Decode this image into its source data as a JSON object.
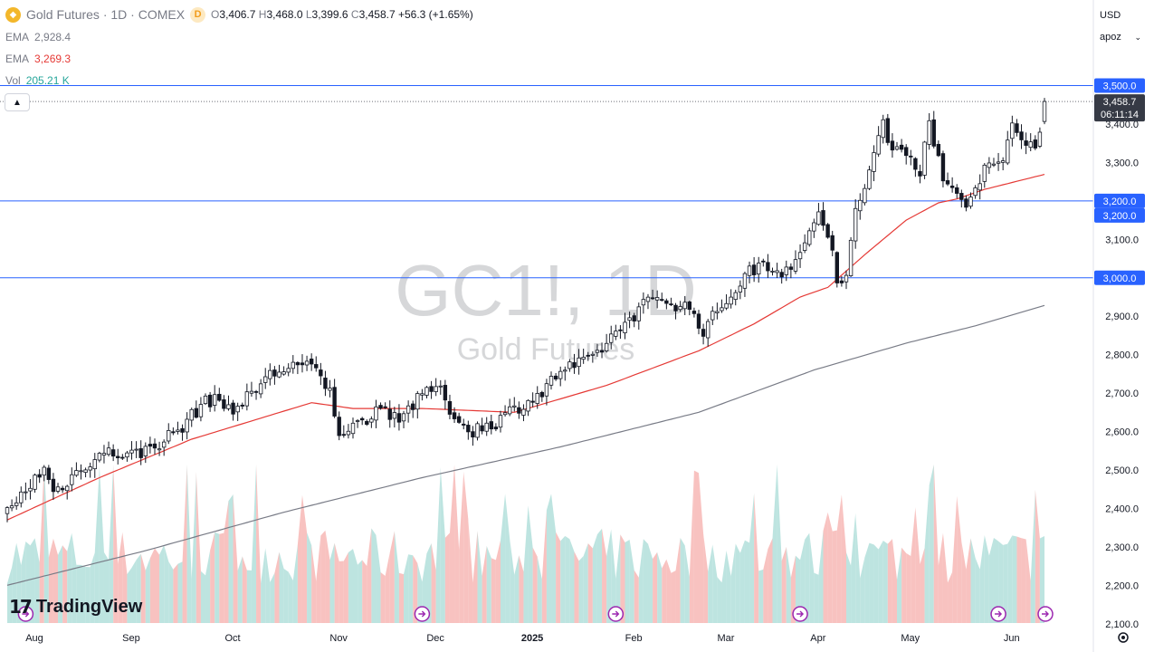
{
  "header": {
    "symbol_title": "Gold Futures · 1D · COMEX",
    "interval_badge": "D",
    "ohlc": {
      "open_label": "O",
      "open": "3,406.7",
      "high_label": "H",
      "high": "3,468.0",
      "low_label": "L",
      "low": "3,399.6",
      "close_label": "C",
      "close": "3,458.7",
      "change": "+56.3 (+1.65%)"
    },
    "collapse_icon": "chevron-up-icon"
  },
  "indicators": [
    {
      "name": "EMA",
      "value": "2,928.4",
      "color": "#787b86"
    },
    {
      "name": "EMA",
      "value": "3,269.3",
      "color": "#e53935"
    },
    {
      "name": "Vol",
      "value": "205.21 K",
      "color": "#26a69a"
    }
  ],
  "controls": {
    "currency": "USD",
    "scale_mode": "apoz"
  },
  "watermark": {
    "symbol": "GC1!, 1D",
    "name": "Gold Futures"
  },
  "branding": {
    "name": "TradingView",
    "logo_icon": "tradingview-logo-icon"
  },
  "colors": {
    "up": "#26a69a",
    "down": "#ef5350",
    "level_line": "#2962ff",
    "ema_fast": "#e53935",
    "ema_slow": "#787b86",
    "vol_up": "#b2dfdb",
    "vol_down": "#f7b7b5"
  },
  "chart_data": {
    "type": "candlestick",
    "title": "Gold Futures · 1D · COMEX",
    "y_axis": {
      "ticks": [
        2100,
        2200,
        2300,
        2400,
        2500,
        2600,
        2700,
        2800,
        2900,
        3000,
        3100,
        3200,
        3300,
        3400
      ],
      "tick_labels": [
        "2,100.0",
        "2,200.0",
        "2,300.0",
        "2,400.0",
        "2,500.0",
        "2,600.0",
        "2,700.0",
        "2,800.0",
        "2,900.0",
        "3,000.0",
        "3,100.0",
        "3,200.0",
        "3,300.0",
        "3,400.0"
      ],
      "range": [
        2080,
        3560
      ],
      "price_tags": [
        {
          "label": "3,500.0",
          "value": 3500
        },
        {
          "label": "3,458.7",
          "value": 3458.7,
          "sublabel": "06:11:14"
        },
        {
          "label": "3,200.0",
          "value": 3200
        },
        {
          "label": "3,200.0",
          "value": 3200,
          "offset": 1
        },
        {
          "label": "3,000.0",
          "value": 3000
        }
      ]
    },
    "x_axis": {
      "labels": [
        "Aug",
        "Sep",
        "Oct",
        "Nov",
        "Dec",
        "2025",
        "Feb",
        "Mar",
        "Apr",
        "May",
        "Jun"
      ],
      "label_days": [
        0,
        21,
        43,
        66,
        87,
        108,
        130,
        150,
        170,
        190,
        212
      ]
    },
    "horizontal_levels": [
      3500,
      3200,
      3000
    ],
    "sessions": 226,
    "price_path": [
      [
        0,
        2390
      ],
      [
        8,
        2505
      ],
      [
        10,
        2440
      ],
      [
        18,
        2525
      ],
      [
        21,
        2545
      ],
      [
        28,
        2540
      ],
      [
        32,
        2565
      ],
      [
        38,
        2610
      ],
      [
        43,
        2685
      ],
      [
        50,
        2660
      ],
      [
        56,
        2740
      ],
      [
        62,
        2775
      ],
      [
        67,
        2760
      ],
      [
        70,
        2700
      ],
      [
        72,
        2600
      ],
      [
        77,
        2620
      ],
      [
        80,
        2665
      ],
      [
        85,
        2640
      ],
      [
        88,
        2670
      ],
      [
        93,
        2720
      ],
      [
        96,
        2660
      ],
      [
        100,
        2600
      ],
      [
        106,
        2625
      ],
      [
        110,
        2660
      ],
      [
        116,
        2700
      ],
      [
        120,
        2760
      ],
      [
        126,
        2780
      ],
      [
        133,
        2870
      ],
      [
        138,
        2930
      ],
      [
        142,
        2945
      ],
      [
        148,
        2920
      ],
      [
        151,
        2865
      ],
      [
        155,
        2925
      ],
      [
        160,
        3005
      ],
      [
        164,
        3040
      ],
      [
        168,
        3020
      ],
      [
        172,
        3050
      ],
      [
        176,
        3180
      ],
      [
        179,
        3060
      ],
      [
        180,
        2985
      ],
      [
        182,
        3000
      ],
      [
        184,
        3170
      ],
      [
        186,
        3230
      ],
      [
        188,
        3330
      ],
      [
        190,
        3410
      ],
      [
        192,
        3330
      ],
      [
        196,
        3320
      ],
      [
        198,
        3280
      ],
      [
        200,
        3420
      ],
      [
        203,
        3240
      ],
      [
        206,
        3225
      ],
      [
        208,
        3180
      ],
      [
        210,
        3240
      ],
      [
        213,
        3310
      ],
      [
        216,
        3300
      ],
      [
        218,
        3390
      ],
      [
        221,
        3360
      ],
      [
        223,
        3335
      ],
      [
        225,
        3459
      ]
    ],
    "ema_fast_path": [
      [
        0,
        2370
      ],
      [
        20,
        2480
      ],
      [
        40,
        2580
      ],
      [
        66,
        2675
      ],
      [
        75,
        2660
      ],
      [
        90,
        2660
      ],
      [
        110,
        2650
      ],
      [
        130,
        2720
      ],
      [
        150,
        2810
      ],
      [
        162,
        2880
      ],
      [
        172,
        2950
      ],
      [
        178,
        2975
      ],
      [
        186,
        3060
      ],
      [
        195,
        3150
      ],
      [
        202,
        3195
      ],
      [
        206,
        3205
      ],
      [
        212,
        3230
      ],
      [
        225,
        3269
      ]
    ],
    "ema_slow_path": [
      [
        0,
        2200
      ],
      [
        30,
        2290
      ],
      [
        60,
        2390
      ],
      [
        90,
        2480
      ],
      [
        120,
        2560
      ],
      [
        150,
        2650
      ],
      [
        175,
        2760
      ],
      [
        195,
        2830
      ],
      [
        210,
        2875
      ],
      [
        225,
        2928
      ]
    ]
  }
}
